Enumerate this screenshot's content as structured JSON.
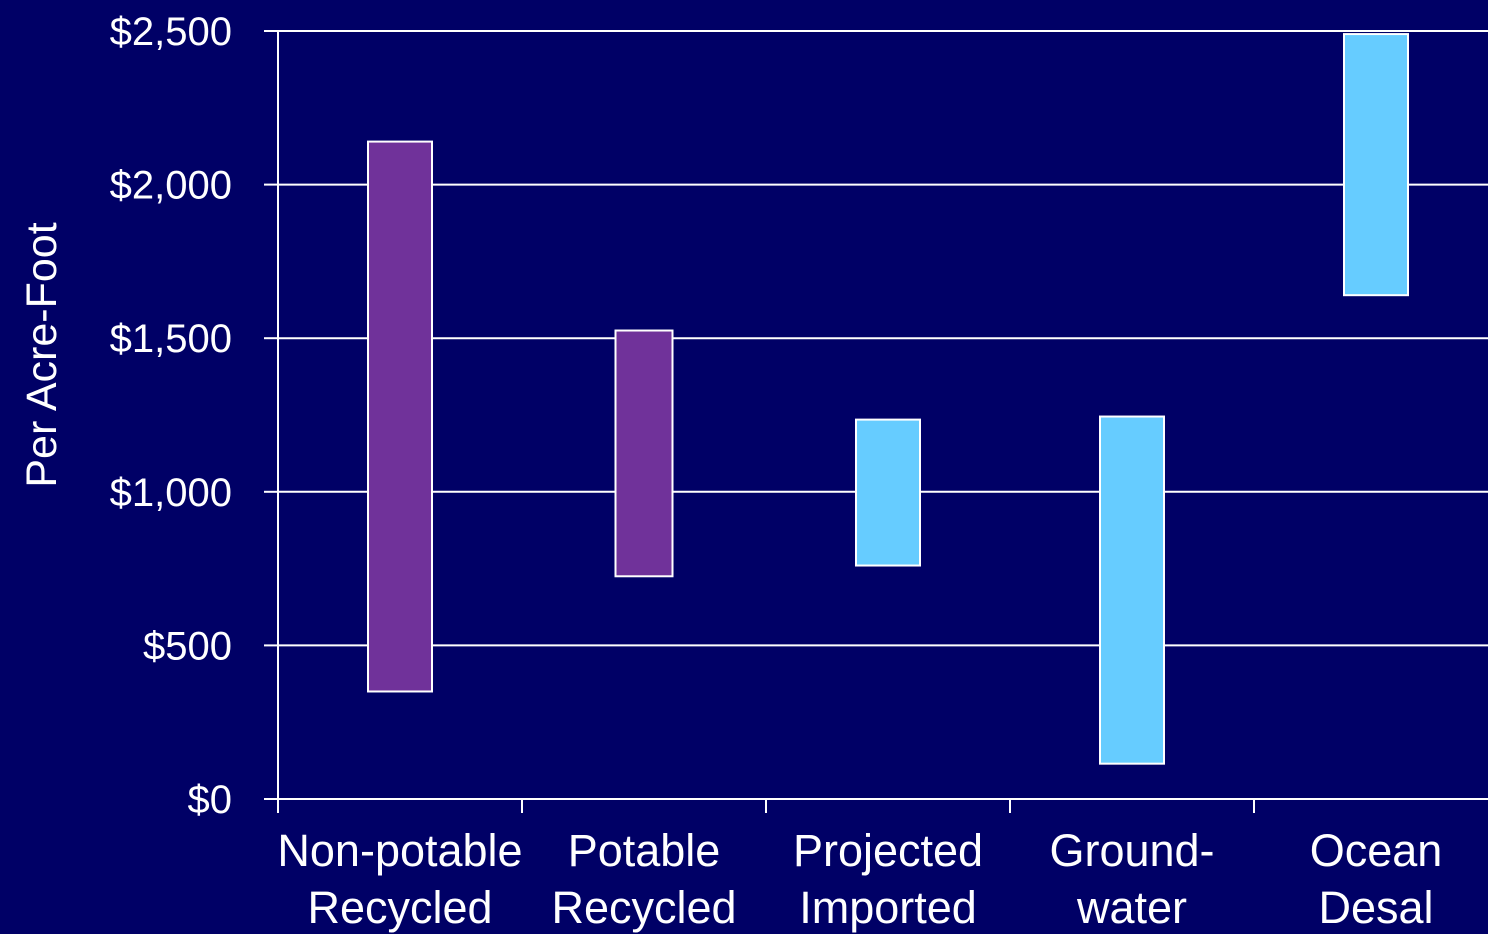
{
  "chart_data": {
    "type": "bar",
    "subtype": "floating-range",
    "ylabel": "Per Acre-Foot",
    "ylim": [
      0,
      2500
    ],
    "yticks": [
      0,
      500,
      1000,
      1500,
      2000,
      2500
    ],
    "ytick_labels": [
      "$0",
      "$500",
      "$1,000",
      "$1,500",
      "$2,000",
      "$2,500"
    ],
    "grid": true,
    "categories": [
      {
        "id": "non-potable-recycled",
        "lines": [
          "Non-potable",
          "Recycled"
        ],
        "low": 350,
        "high": 2140,
        "color": "#70329A"
      },
      {
        "id": "potable-recycled",
        "lines": [
          "Potable",
          "Recycled"
        ],
        "low": 725,
        "high": 1525,
        "color": "#70329A"
      },
      {
        "id": "projected-imported",
        "lines": [
          "Projected",
          "Imported"
        ],
        "low": 760,
        "high": 1235,
        "color": "#66CCFF"
      },
      {
        "id": "groundwater",
        "lines": [
          "Ground-",
          "water"
        ],
        "low": 115,
        "high": 1245,
        "color": "#66CCFF"
      },
      {
        "id": "ocean-desal",
        "lines": [
          "Ocean",
          "Desal"
        ],
        "low": 1640,
        "high": 2490,
        "color": "#66CCFF"
      }
    ]
  }
}
